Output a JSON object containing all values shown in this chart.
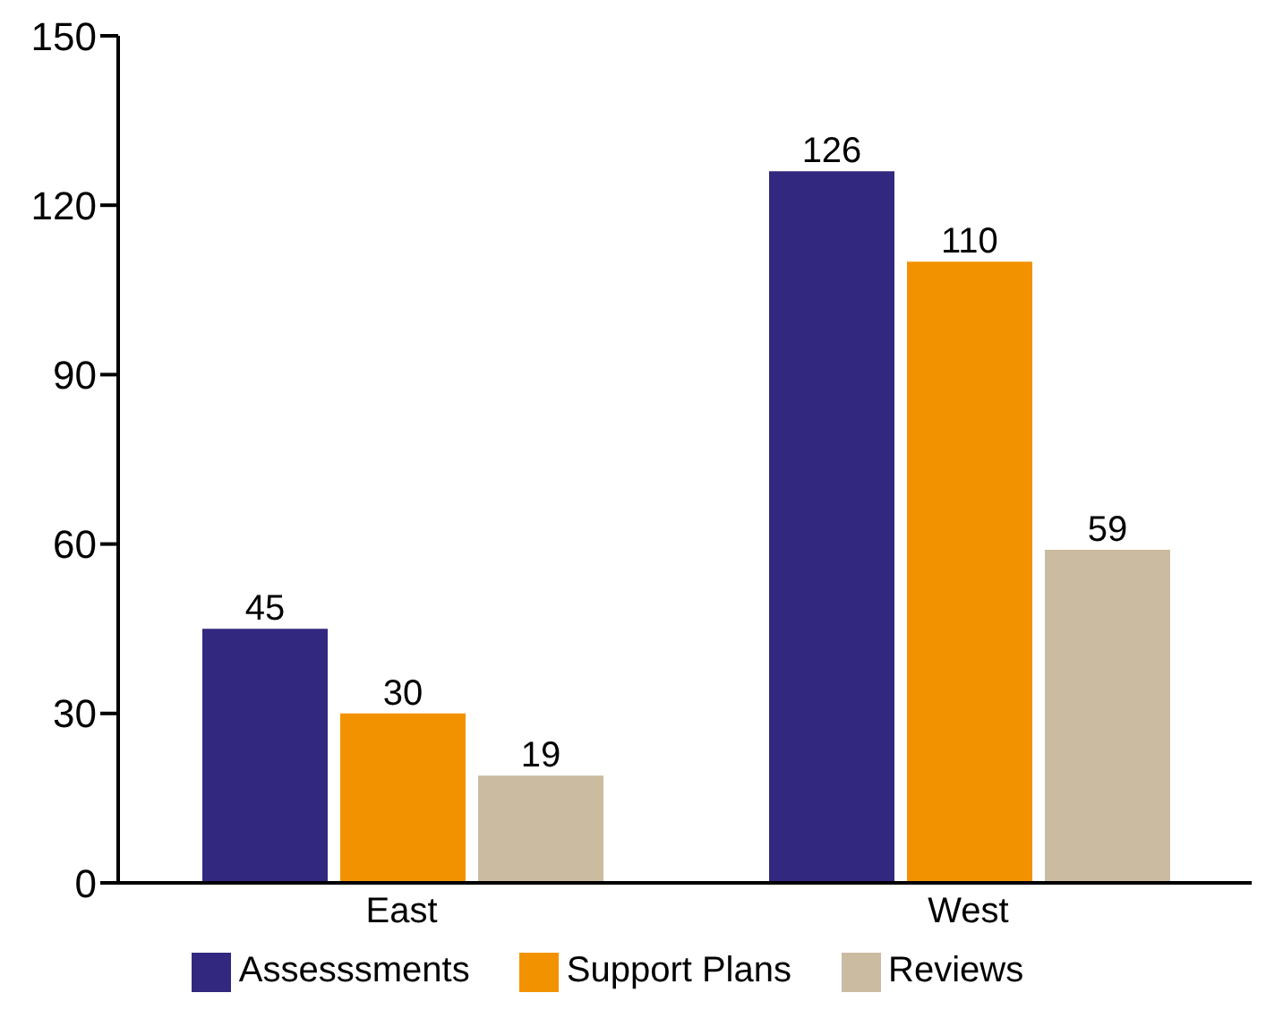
{
  "chart_data": {
    "type": "bar",
    "categories": [
      "East",
      "West"
    ],
    "series": [
      {
        "name": "Assesssments",
        "color": "#32287f",
        "values": [
          45,
          126
        ]
      },
      {
        "name": "Support Plans",
        "color": "#f39200",
        "values": [
          30,
          110
        ]
      },
      {
        "name": "Reviews",
        "color": "#cbbba0",
        "values": [
          19,
          59
        ]
      }
    ],
    "ylim": [
      0,
      150
    ],
    "yticks": [
      0,
      30,
      60,
      90,
      120,
      150
    ],
    "grid": false,
    "legend": "bottom",
    "data_labels": true
  }
}
